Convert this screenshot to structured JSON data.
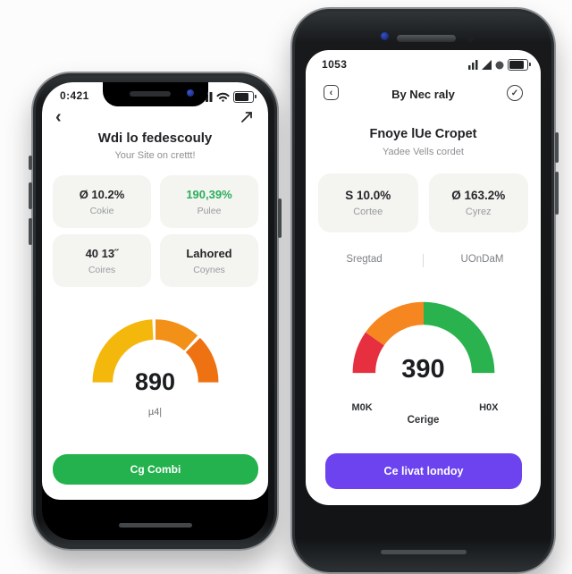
{
  "page": {
    "background": "#FCFCFC"
  },
  "left_phone": {
    "statusbar": {
      "time": "0:421"
    },
    "nav": {
      "back_glyph": "‹"
    },
    "header": {
      "title": "Wdi lo fedescouly",
      "subtitle": "Your Site on crettt!"
    },
    "cards": [
      {
        "value": "Ø 10.2%",
        "label": "Cokie",
        "value_color": "#26282A"
      },
      {
        "value": "190,39%",
        "label": "Pulee",
        "value_color": "#2BAE5B"
      },
      {
        "value": "40 13˝",
        "label": "Coires",
        "value_color": "#26282A"
      },
      {
        "value": "Lahored",
        "label": "Coynes",
        "value_color": "#26282A"
      }
    ],
    "gauge": {
      "type": "gauge",
      "value": "890",
      "bottom_label": "µ4|",
      "segments": [
        {
          "from": 0,
          "to": 87,
          "color": "#F4B70B"
        },
        {
          "from": 90,
          "to": 132,
          "color": "#F39018"
        },
        {
          "from": 135,
          "to": 180,
          "color": "#EF7212"
        }
      ]
    },
    "button": {
      "label": "Cg Combi",
      "color": "#23B24D"
    }
  },
  "right_phone": {
    "statusbar": {
      "time": "1053"
    },
    "header": {
      "title": "By Nec raly",
      "back_glyph": "‹",
      "check_glyph": "✓"
    },
    "page": {
      "title": "Fnoye lUe Cropet",
      "subtitle": "Yadee Vells cordet"
    },
    "cards": [
      {
        "value": "S 10.0%",
        "label": "Cortee",
        "value_color": "#26282A"
      },
      {
        "value": "Ø 163.2%",
        "label": "Cyrez",
        "value_color": "#26282A"
      }
    ],
    "tabs": [
      {
        "label": "Sregtad"
      },
      {
        "label": "UOnDaM"
      }
    ],
    "gauge": {
      "type": "gauge",
      "value": "390",
      "min_label": "M0K",
      "center_label": "Cerige",
      "max_label": "H0X",
      "segments": [
        {
          "from": 0,
          "to": 35,
          "color": "#E6303F"
        },
        {
          "from": 35,
          "to": 90,
          "color": "#F6861F"
        },
        {
          "from": 90,
          "to": 180,
          "color": "#29B24E"
        }
      ]
    },
    "button": {
      "label": "Ce livat londoy",
      "color": "#6C43EF"
    }
  }
}
